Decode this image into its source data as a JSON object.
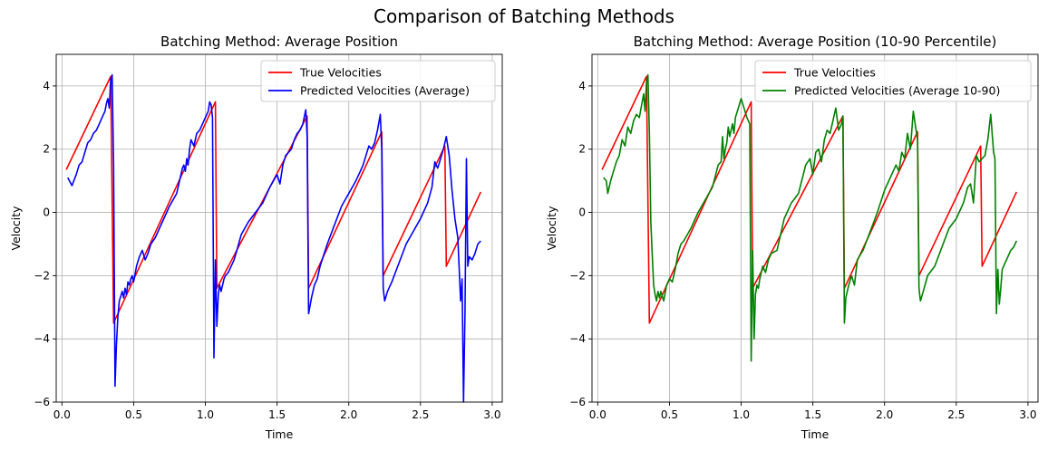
{
  "figure": {
    "title": "Comparison of Batching Methods"
  },
  "chart_data": [
    {
      "type": "line",
      "title": "Batching Method: Average Position",
      "xlabel": "Time",
      "ylabel": "Velocity",
      "xlim": [
        -0.04,
        3.07
      ],
      "ylim": [
        -6,
        5
      ],
      "xticks": [
        0.0,
        0.5,
        1.0,
        1.5,
        2.0,
        2.5,
        3.0
      ],
      "xtick_labels": [
        "0.0",
        "0.5",
        "1.0",
        "1.5",
        "2.0",
        "2.5",
        "3.0"
      ],
      "yticks": [
        -6,
        -4,
        -2,
        0,
        2,
        4
      ],
      "ytick_labels": [
        "−6",
        "−4",
        "−2",
        "0",
        "2",
        "4"
      ],
      "grid": true,
      "legend": "top-right",
      "series": [
        {
          "name": "True Velocities",
          "color": "#ff0000",
          "x": [
            0.03,
            0.34,
            0.36,
            1.07,
            1.08,
            1.71,
            1.72,
            2.23,
            2.24,
            2.67,
            2.68,
            2.92
          ],
          "y": [
            1.35,
            4.3,
            -3.5,
            3.5,
            -2.4,
            3.05,
            -2.4,
            2.55,
            -2.0,
            2.1,
            -1.7,
            0.65
          ]
        },
        {
          "name": "Predicted Velocities (Average)",
          "color": "#0000ff",
          "x": [
            0.04,
            0.07,
            0.1,
            0.12,
            0.14,
            0.16,
            0.18,
            0.2,
            0.22,
            0.24,
            0.26,
            0.28,
            0.3,
            0.31,
            0.32,
            0.33,
            0.34,
            0.35,
            0.36,
            0.37,
            0.38,
            0.39,
            0.4,
            0.42,
            0.43,
            0.44,
            0.45,
            0.46,
            0.47,
            0.48,
            0.49,
            0.5,
            0.52,
            0.54,
            0.56,
            0.58,
            0.6,
            0.62,
            0.65,
            0.7,
            0.75,
            0.8,
            0.84,
            0.85,
            0.86,
            0.87,
            0.88,
            0.89,
            0.9,
            0.92,
            0.94,
            0.96,
            0.98,
            1.0,
            1.02,
            1.03,
            1.04,
            1.05,
            1.06,
            1.07,
            1.08,
            1.09,
            1.1,
            1.11,
            1.12,
            1.13,
            1.14,
            1.16,
            1.18,
            1.2,
            1.22,
            1.25,
            1.3,
            1.35,
            1.4,
            1.45,
            1.5,
            1.52,
            1.54,
            1.56,
            1.58,
            1.6,
            1.62,
            1.64,
            1.66,
            1.68,
            1.7,
            1.71,
            1.72,
            1.74,
            1.76,
            1.78,
            1.8,
            1.85,
            1.9,
            1.95,
            2.0,
            2.05,
            2.08,
            2.1,
            2.12,
            2.14,
            2.16,
            2.18,
            2.2,
            2.22,
            2.23,
            2.24,
            2.25,
            2.27,
            2.3,
            2.35,
            2.4,
            2.45,
            2.5,
            2.55,
            2.58,
            2.6,
            2.62,
            2.64,
            2.66,
            2.68,
            2.7,
            2.72,
            2.74,
            2.76,
            2.78,
            2.79,
            2.8,
            2.81,
            2.82,
            2.83,
            2.84,
            2.86,
            2.88,
            2.9,
            2.92
          ],
          "y": [
            1.1,
            0.85,
            1.2,
            1.5,
            1.6,
            1.9,
            2.2,
            2.3,
            2.5,
            2.6,
            2.8,
            3.0,
            3.2,
            3.45,
            3.6,
            3.3,
            4.2,
            4.35,
            1.5,
            -5.5,
            -4.2,
            -3.3,
            -2.8,
            -2.5,
            -2.7,
            -2.4,
            -2.6,
            -2.2,
            -2.3,
            -2.1,
            -2.0,
            -2.2,
            -1.7,
            -1.4,
            -1.2,
            -1.5,
            -1.3,
            -1.0,
            -0.8,
            -0.3,
            0.2,
            0.6,
            1.4,
            1.5,
            1.3,
            1.7,
            1.5,
            2.0,
            2.3,
            2.1,
            2.5,
            2.6,
            2.8,
            3.0,
            3.2,
            3.5,
            3.4,
            3.0,
            -4.6,
            -1.5,
            -3.6,
            -2.6,
            -2.3,
            -2.5,
            -2.3,
            -2.1,
            -2.0,
            -1.9,
            -1.7,
            -1.5,
            -1.2,
            -0.7,
            -0.3,
            0.0,
            0.3,
            0.8,
            1.2,
            0.9,
            1.5,
            1.8,
            1.9,
            2.0,
            2.3,
            2.5,
            2.6,
            2.8,
            3.25,
            2.4,
            -3.2,
            -2.7,
            -2.3,
            -2.1,
            -1.7,
            -1.0,
            -0.4,
            0.2,
            0.6,
            1.0,
            1.3,
            1.5,
            1.8,
            2.1,
            2.0,
            2.2,
            2.6,
            3.1,
            2.0,
            -2.4,
            -2.8,
            -2.5,
            -2.2,
            -1.6,
            -1.0,
            -0.6,
            -0.2,
            0.3,
            0.8,
            1.6,
            1.4,
            1.7,
            2.0,
            2.4,
            1.8,
            0.7,
            -0.2,
            -0.8,
            -2.8,
            -2.1,
            -6.0,
            -3.2,
            1.7,
            -1.7,
            -1.4,
            -1.5,
            -1.3,
            -1.0,
            -0.9
          ]
        }
      ]
    },
    {
      "type": "line",
      "title": "Batching Method: Average Position (10-90 Percentile)",
      "xlabel": "Time",
      "ylabel": "Velocity",
      "xlim": [
        -0.04,
        3.07
      ],
      "ylim": [
        -6,
        5
      ],
      "xticks": [
        0.0,
        0.5,
        1.0,
        1.5,
        2.0,
        2.5,
        3.0
      ],
      "xtick_labels": [
        "0.0",
        "0.5",
        "1.0",
        "1.5",
        "2.0",
        "2.5",
        "3.0"
      ],
      "yticks": [
        -6,
        -4,
        -2,
        0,
        2,
        4
      ],
      "ytick_labels": [
        "−6",
        "−4",
        "−2",
        "0",
        "2",
        "4"
      ],
      "grid": true,
      "legend": "top-right",
      "series": [
        {
          "name": "True Velocities",
          "color": "#ff0000",
          "x": [
            0.03,
            0.34,
            0.36,
            1.07,
            1.08,
            1.71,
            1.72,
            2.23,
            2.24,
            2.67,
            2.68,
            2.92
          ],
          "y": [
            1.35,
            4.3,
            -3.5,
            3.5,
            -2.4,
            3.05,
            -2.4,
            2.55,
            -2.0,
            2.1,
            -1.7,
            0.65
          ]
        },
        {
          "name": "Predicted Velocities (Average 10-90)",
          "color": "#008000",
          "x": [
            0.04,
            0.06,
            0.07,
            0.09,
            0.11,
            0.13,
            0.15,
            0.17,
            0.19,
            0.21,
            0.23,
            0.25,
            0.27,
            0.29,
            0.31,
            0.32,
            0.33,
            0.34,
            0.35,
            0.36,
            0.37,
            0.38,
            0.39,
            0.4,
            0.41,
            0.42,
            0.43,
            0.44,
            0.46,
            0.48,
            0.5,
            0.52,
            0.54,
            0.56,
            0.58,
            0.6,
            0.65,
            0.7,
            0.75,
            0.8,
            0.84,
            0.86,
            0.87,
            0.88,
            0.89,
            0.9,
            0.91,
            0.92,
            0.94,
            0.95,
            0.96,
            0.98,
            1.0,
            1.02,
            1.04,
            1.06,
            1.07,
            1.08,
            1.09,
            1.1,
            1.11,
            1.12,
            1.13,
            1.15,
            1.17,
            1.19,
            1.21,
            1.25,
            1.3,
            1.35,
            1.4,
            1.45,
            1.48,
            1.5,
            1.52,
            1.54,
            1.56,
            1.58,
            1.6,
            1.62,
            1.64,
            1.66,
            1.68,
            1.7,
            1.71,
            1.72,
            1.73,
            1.75,
            1.77,
            1.79,
            1.81,
            1.85,
            1.9,
            1.95,
            2.0,
            2.05,
            2.08,
            2.1,
            2.12,
            2.14,
            2.16,
            2.18,
            2.2,
            2.22,
            2.23,
            2.24,
            2.25,
            2.27,
            2.3,
            2.35,
            2.4,
            2.45,
            2.5,
            2.55,
            2.58,
            2.6,
            2.62,
            2.64,
            2.66,
            2.68,
            2.7,
            2.72,
            2.74,
            2.76,
            2.77,
            2.78,
            2.79,
            2.8,
            2.81,
            2.82,
            2.84,
            2.86,
            2.88,
            2.9,
            2.92
          ],
          "y": [
            1.1,
            1.0,
            0.6,
            1.0,
            1.3,
            1.6,
            1.8,
            2.3,
            2.1,
            2.7,
            2.5,
            2.9,
            3.1,
            3.0,
            3.5,
            3.75,
            3.2,
            4.1,
            4.35,
            2.5,
            -0.3,
            -1.3,
            -2.3,
            -2.6,
            -2.8,
            -2.5,
            -2.7,
            -2.5,
            -2.8,
            -2.3,
            -2.1,
            -2.2,
            -1.8,
            -1.3,
            -1.0,
            -0.9,
            -0.5,
            0.0,
            0.4,
            0.8,
            1.5,
            1.6,
            2.4,
            1.7,
            2.0,
            2.2,
            2.7,
            2.4,
            2.8,
            2.5,
            3.0,
            3.3,
            3.6,
            3.3,
            3.0,
            2.8,
            -4.7,
            -1.2,
            -4.0,
            -2.6,
            -2.3,
            -2.4,
            -2.1,
            -1.7,
            -1.9,
            -1.5,
            -1.3,
            -1.2,
            -0.2,
            0.3,
            0.6,
            1.5,
            1.7,
            1.2,
            1.9,
            2.0,
            1.6,
            2.3,
            2.6,
            2.5,
            2.9,
            3.3,
            2.6,
            2.8,
            3.05,
            -3.5,
            -2.7,
            -2.3,
            -2.0,
            -2.3,
            -1.5,
            -1.2,
            -0.6,
            0.0,
            0.7,
            1.2,
            1.5,
            1.3,
            1.9,
            1.7,
            2.5,
            2.0,
            3.2,
            2.6,
            2.3,
            -2.4,
            -2.8,
            -2.5,
            -2.0,
            -1.7,
            -1.1,
            -0.5,
            -0.2,
            0.3,
            0.8,
            0.9,
            0.3,
            1.8,
            1.6,
            1.7,
            1.8,
            2.3,
            3.1,
            1.9,
            1.7,
            -3.2,
            -1.8,
            -2.9,
            -2.4,
            -1.8,
            -1.6,
            -1.4,
            -1.2,
            -1.1,
            -0.9
          ]
        }
      ]
    }
  ]
}
